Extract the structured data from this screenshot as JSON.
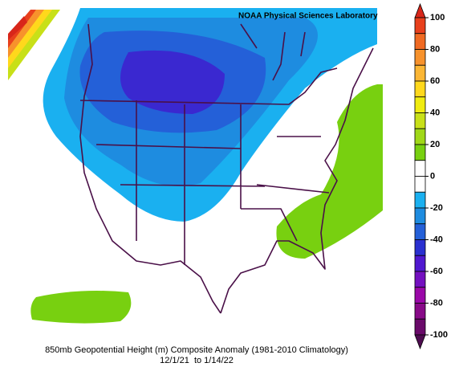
{
  "header": {
    "lab": "NOAA Physical Sciences Laboratory"
  },
  "caption": {
    "title": "850mb Geopotential Height (m) Composite Anomaly (1981-2010 Climatology)",
    "dates": "12/1/21  to 1/14/22"
  },
  "colorbar": {
    "ylim": [
      -100,
      100
    ],
    "ticks": [
      100,
      80,
      60,
      40,
      20,
      0,
      -20,
      -40,
      -60,
      -80,
      -100
    ],
    "colors": [
      "#d8261a",
      "#e8401c",
      "#f06a22",
      "#f7922c",
      "#fbb634",
      "#ffd81c",
      "#f0ec10",
      "#c8e018",
      "#a0d818",
      "#78d010",
      "#ffffff",
      "#ffffff",
      "#1ab0f0",
      "#1e8ce0",
      "#2460d8",
      "#2a30d0",
      "#5018d0",
      "#7410c0",
      "#9a08a8",
      "#880a88",
      "#6a0a6a",
      "#4e0c50"
    ]
  }
}
